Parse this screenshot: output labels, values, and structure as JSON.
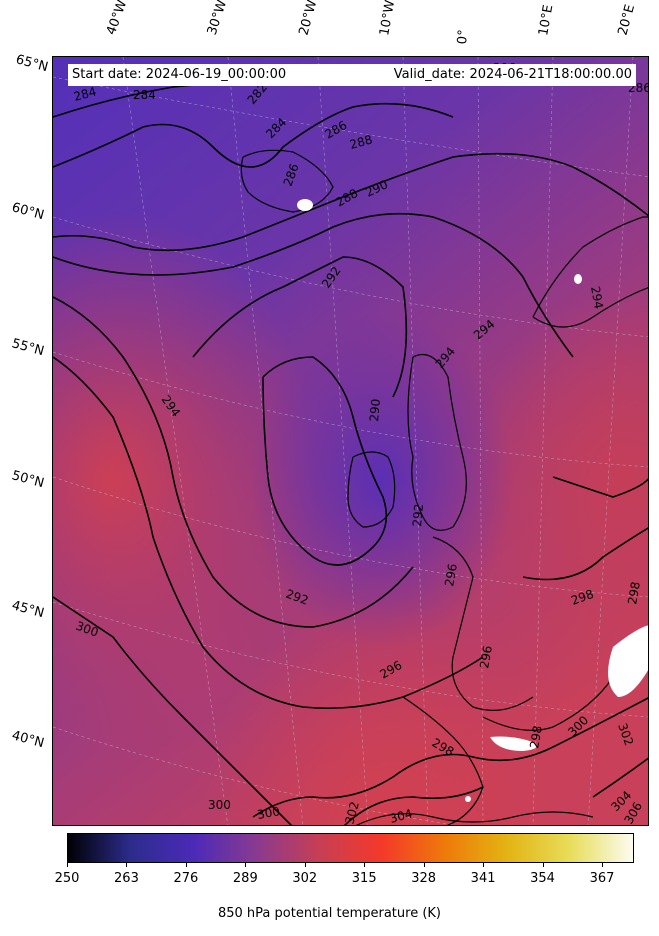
{
  "header": {
    "start_date": "Start date: 2024-06-19_00:00:00",
    "valid_date": "Valid_date: 2024-06-21T18:00:00.00"
  },
  "longitude_labels": [
    "40°W",
    "30°W",
    "20°W",
    "10°W",
    "0°",
    "10°E",
    "20°E"
  ],
  "latitude_labels": [
    "65°N",
    "60°N",
    "55°N",
    "50°N",
    "45°N",
    "40°N"
  ],
  "contour_labels": [
    "284",
    "284",
    "282",
    "284",
    "286",
    "288",
    "286",
    "288",
    "290",
    "292",
    "294",
    "294",
    "290",
    "294",
    "292",
    "292",
    "296",
    "300",
    "296",
    "296",
    "298",
    "298",
    "298",
    "298",
    "300",
    "302",
    "300",
    "300",
    "302",
    "304",
    "304",
    "306",
    "286",
    "296",
    "294"
  ],
  "colorbar": {
    "ticks": [
      "250",
      "263",
      "276",
      "289",
      "302",
      "315",
      "328",
      "341",
      "354",
      "367"
    ],
    "label": "850 hPa potential temperature (K)",
    "range": [
      250,
      374
    ],
    "colormap": [
      "#000004",
      "#2c2c8c",
      "#4b2ab8",
      "#8a3a90",
      "#c63f54",
      "#f4392a",
      "#ee7a0a",
      "#e3b414",
      "#e8dd5a",
      "#fcfcf0"
    ]
  }
}
